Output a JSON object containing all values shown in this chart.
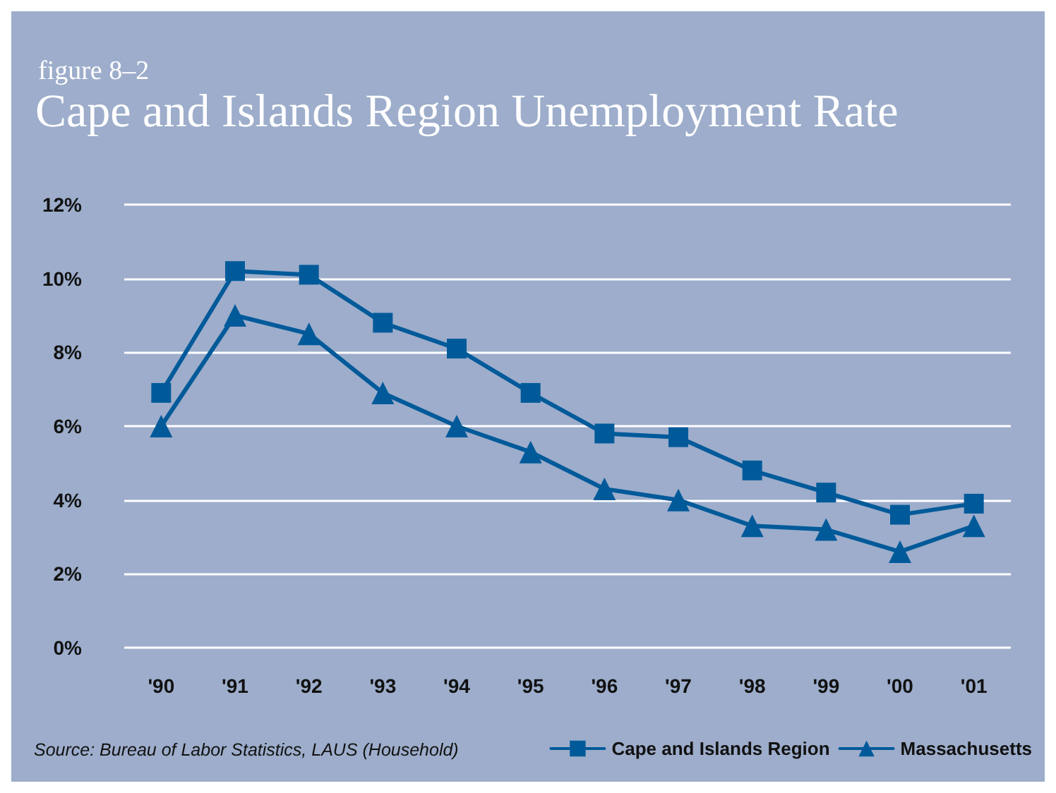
{
  "chart_data": {
    "type": "line",
    "subtitle": "figure 8–2",
    "title": "Cape and Islands Region Unemployment Rate",
    "categories": [
      "'90",
      "'91",
      "'92",
      "'93",
      "'94",
      "'95",
      "'96",
      "'97",
      "'98",
      "'99",
      "'00",
      "'01"
    ],
    "series": [
      {
        "name": "Cape and Islands Region",
        "color": "#005a9a",
        "marker": "square",
        "values": [
          6.9,
          10.2,
          10.1,
          8.8,
          8.1,
          6.9,
          5.8,
          5.7,
          4.8,
          4.2,
          3.6,
          3.9
        ]
      },
      {
        "name": "Massachusetts",
        "color": "#005a9a",
        "marker": "triangle",
        "values": [
          6.0,
          9.0,
          8.5,
          6.9,
          6.0,
          5.3,
          4.3,
          4.0,
          3.3,
          3.2,
          2.6,
          3.3
        ]
      }
    ],
    "ylim": [
      0,
      12
    ],
    "yticks": [
      {
        "value": 0,
        "label": "0%"
      },
      {
        "value": 2,
        "label": "2%"
      },
      {
        "value": 4,
        "label": "4%"
      },
      {
        "value": 6,
        "label": "6%"
      },
      {
        "value": 8,
        "label": "8%"
      },
      {
        "value": 10,
        "label": "10%"
      },
      {
        "value": 12,
        "label": "12%"
      }
    ],
    "grid": "y",
    "legend": "bottom right",
    "line_style": "solid",
    "annotations": [
      "Source: Bureau of Labor Statistics, LAUS (Household)"
    ]
  }
}
